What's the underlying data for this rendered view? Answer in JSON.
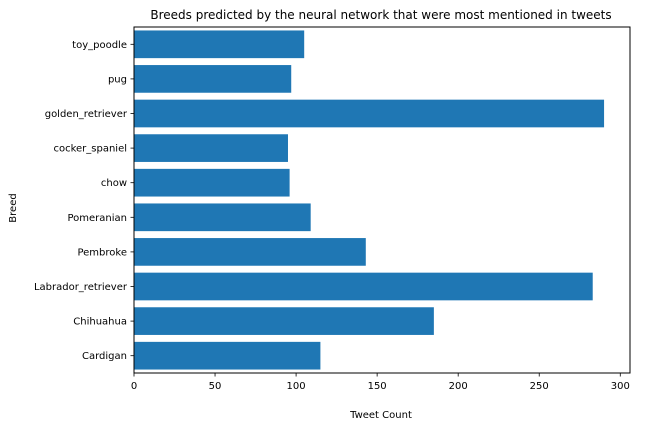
{
  "chart_data": {
    "type": "bar",
    "orientation": "horizontal",
    "title": "Breeds predicted by the neural network that were most mentioned in tweets",
    "xlabel": "Tweet Count",
    "ylabel": "Breed",
    "categories": [
      "Cardigan",
      "Chihuahua",
      "Labrador_retriever",
      "Pembroke",
      "Pomeranian",
      "chow",
      "cocker_spaniel",
      "golden_retriever",
      "pug",
      "toy_poodle"
    ],
    "values": [
      115,
      185,
      283,
      143,
      109,
      96,
      95,
      290,
      97,
      105
    ],
    "xlim": [
      0,
      306
    ],
    "xticks": [
      0,
      50,
      100,
      150,
      200,
      250,
      300
    ],
    "bar_color": "#1f77b4",
    "grid": false,
    "legend": "none"
  }
}
